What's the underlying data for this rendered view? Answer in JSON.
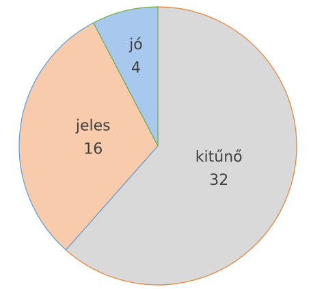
{
  "chart_data": {
    "type": "pie",
    "categories": [
      "kitűnő",
      "jeles",
      "jó"
    ],
    "values": [
      32,
      16,
      4
    ],
    "colors": [
      "#d9d9d9",
      "#f8cbad",
      "#a9c8ee"
    ],
    "edge_colors": [
      "#ed7d31",
      "#5b9bd5",
      "#70ad47"
    ]
  }
}
